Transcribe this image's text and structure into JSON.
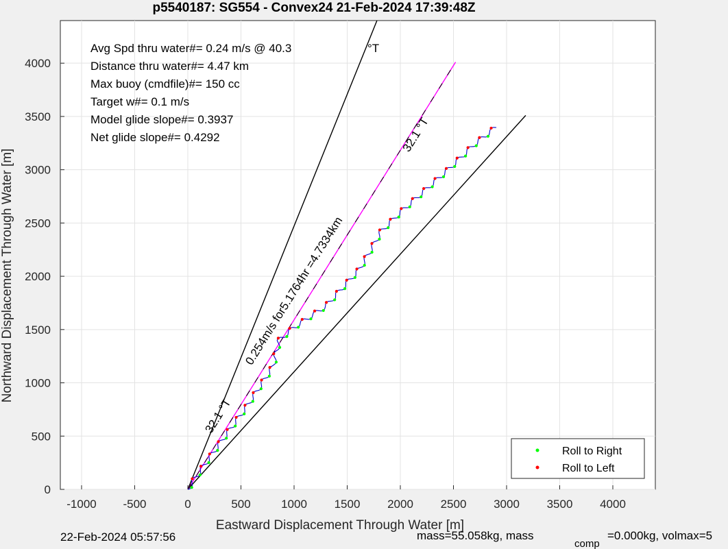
{
  "chart_data": {
    "type": "line",
    "title": "p5540187: SG554 - Convex24 21-Feb-2024 17:39:48Z",
    "xlabel": "Eastward Displacement Through Water [m]",
    "ylabel": "Northward Displacement Through Water [m]",
    "xlim": [
      -1200,
      4400
    ],
    "ylim": [
      0,
      4400
    ],
    "xticks": [
      -1000,
      -500,
      0,
      500,
      1000,
      1500,
      2000,
      2500,
      3000,
      3500,
      4000
    ],
    "xtick_labels": [
      "-1000",
      "-500",
      "0",
      "500",
      "1000",
      "1500",
      "2000",
      "2500",
      "3000",
      "3500",
      "4000"
    ],
    "yticks": [
      0,
      500,
      1000,
      1500,
      2000,
      2500,
      3000,
      3500,
      4000
    ],
    "ytick_labels": [
      "0",
      "500",
      "1000",
      "1500",
      "2000",
      "2500",
      "3000",
      "3500",
      "4000"
    ],
    "grid": true,
    "legend_position": "bottom-right",
    "legend": [
      {
        "label": "Roll to Right",
        "color": "#00ff00"
      },
      {
        "label": "Roll to Left",
        "color": "#ff0000"
      }
    ],
    "stats": [
      "Avg Spd thru water#=  0.24 m/s @  40.3",
      "Distance thru water#=  4.47 km",
      "Max buoy (cmdfile)#= 150 cc",
      "Target w#= 0.1 m/s",
      "Model glide slope#= 0.3937",
      "Net glide slope#= 0.4292"
    ],
    "stats_heading_unit": "°T",
    "lines": [
      {
        "name": "upper bound",
        "color": "#000000",
        "points": [
          [
            0,
            0
          ],
          [
            1780,
            4400
          ]
        ]
      },
      {
        "name": "lower bound",
        "color": "#000000",
        "points": [
          [
            0,
            0
          ],
          [
            3180,
            3510
          ]
        ]
      },
      {
        "name": "average heading",
        "color": "#ff00ff",
        "points": [
          [
            0,
            0
          ],
          [
            2520,
            4010
          ]
        ]
      },
      {
        "name": "track envelope",
        "color": "#0000cc",
        "points": [
          [
            0,
            0
          ],
          [
            100,
            150
          ],
          [
            300,
            430
          ],
          [
            550,
            770
          ],
          [
            800,
            1150
          ],
          [
            860,
            1400
          ],
          [
            1000,
            1520
          ],
          [
            1300,
            1720
          ],
          [
            1620,
            2070
          ],
          [
            1820,
            2420
          ],
          [
            2000,
            2600
          ],
          [
            2180,
            2760
          ],
          [
            2450,
            3000
          ],
          [
            2700,
            3240
          ],
          [
            2900,
            3400
          ]
        ]
      }
    ],
    "annotations": [
      {
        "text": "32.1 °T",
        "x": 2080,
        "y": 3160,
        "rotate": -58
      },
      {
        "text": "0.254m/s for5.1764hr =4.7334km",
        "x": 600,
        "y": 1160,
        "rotate": -58
      },
      {
        "text": "32.1 °T",
        "x": 220,
        "y": 520,
        "rotate": -58
      }
    ]
  },
  "footer": {
    "timestamp": "22-Feb-2024 05:57:56",
    "mass_text": "mass=55.058kg, mass",
    "comp_subscript": "comp",
    "mass_tail": "=0.000kg, volmax=5"
  }
}
